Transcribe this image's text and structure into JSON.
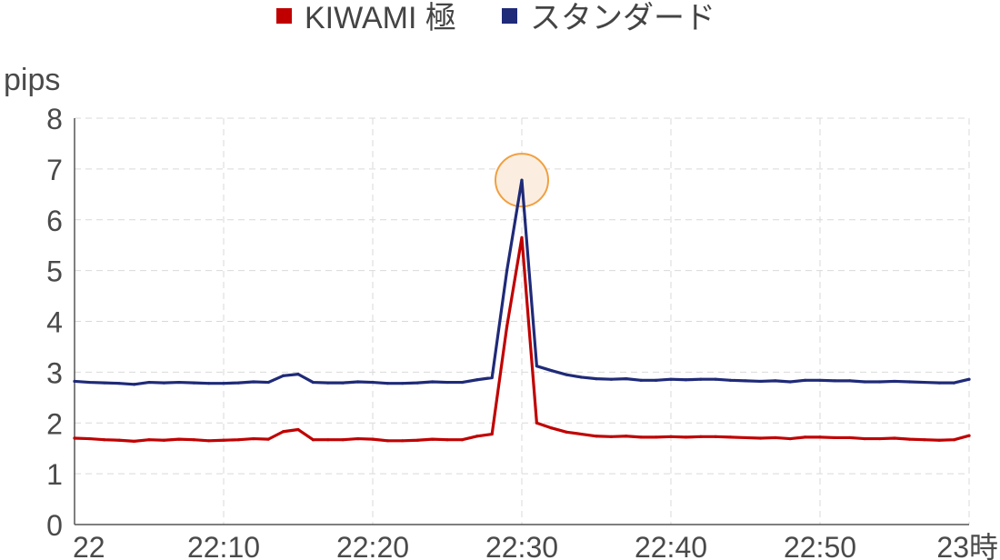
{
  "chart_data": {
    "type": "line",
    "ylabel": "pips",
    "ylim": [
      0,
      8
    ],
    "yticks": [
      "0",
      "1",
      "2",
      "3",
      "4",
      "5",
      "6",
      "7",
      "8"
    ],
    "xlim": [
      0,
      60
    ],
    "xticks": [
      {
        "value": 0,
        "label": "22"
      },
      {
        "value": 10,
        "label": "22:10"
      },
      {
        "value": 20,
        "label": "22:20"
      },
      {
        "value": 30,
        "label": "22:30"
      },
      {
        "value": 40,
        "label": "22:40"
      },
      {
        "value": 50,
        "label": "22:50"
      },
      {
        "value": 60,
        "label": "23時"
      }
    ],
    "grid": true,
    "legend_position": "top-center",
    "highlight": {
      "series": 1,
      "x": 30,
      "color": "#f0a040",
      "fill": "#fbeee0"
    },
    "series": [
      {
        "name": "KIWAMI 極",
        "color": "#c00000",
        "x": [
          0,
          1,
          2,
          3,
          4,
          5,
          6,
          7,
          8,
          9,
          10,
          11,
          12,
          13,
          14,
          15,
          16,
          17,
          18,
          19,
          20,
          21,
          22,
          23,
          24,
          25,
          26,
          27,
          28,
          29,
          30,
          31,
          32,
          33,
          34,
          35,
          36,
          37,
          38,
          39,
          40,
          41,
          42,
          43,
          44,
          45,
          46,
          47,
          48,
          49,
          50,
          51,
          52,
          53,
          54,
          55,
          56,
          57,
          58,
          59,
          60
        ],
        "values": [
          1.7,
          1.69,
          1.67,
          1.66,
          1.64,
          1.67,
          1.66,
          1.68,
          1.67,
          1.65,
          1.66,
          1.67,
          1.69,
          1.68,
          1.83,
          1.87,
          1.67,
          1.67,
          1.67,
          1.69,
          1.68,
          1.65,
          1.65,
          1.66,
          1.68,
          1.67,
          1.67,
          1.74,
          1.78,
          3.9,
          5.65,
          2.0,
          1.9,
          1.82,
          1.78,
          1.74,
          1.73,
          1.74,
          1.72,
          1.72,
          1.73,
          1.72,
          1.73,
          1.73,
          1.72,
          1.71,
          1.7,
          1.71,
          1.69,
          1.72,
          1.72,
          1.71,
          1.71,
          1.69,
          1.69,
          1.7,
          1.68,
          1.67,
          1.66,
          1.67,
          1.75
        ]
      },
      {
        "name": "スタンダード",
        "color": "#1f2a78",
        "x": [
          0,
          1,
          2,
          3,
          4,
          5,
          6,
          7,
          8,
          9,
          10,
          11,
          12,
          13,
          14,
          15,
          16,
          17,
          18,
          19,
          20,
          21,
          22,
          23,
          24,
          25,
          26,
          27,
          28,
          29,
          30,
          31,
          32,
          33,
          34,
          35,
          36,
          37,
          38,
          39,
          40,
          41,
          42,
          43,
          44,
          45,
          46,
          47,
          48,
          49,
          50,
          51,
          52,
          53,
          54,
          55,
          56,
          57,
          58,
          59,
          60
        ],
        "values": [
          2.82,
          2.8,
          2.79,
          2.78,
          2.76,
          2.8,
          2.79,
          2.8,
          2.79,
          2.78,
          2.78,
          2.79,
          2.81,
          2.8,
          2.93,
          2.96,
          2.8,
          2.79,
          2.79,
          2.81,
          2.8,
          2.78,
          2.78,
          2.79,
          2.81,
          2.8,
          2.8,
          2.85,
          2.89,
          5.0,
          6.78,
          3.12,
          3.03,
          2.95,
          2.9,
          2.87,
          2.86,
          2.87,
          2.84,
          2.84,
          2.86,
          2.85,
          2.86,
          2.86,
          2.84,
          2.83,
          2.82,
          2.83,
          2.81,
          2.84,
          2.84,
          2.83,
          2.83,
          2.81,
          2.81,
          2.82,
          2.81,
          2.8,
          2.79,
          2.79,
          2.86
        ]
      }
    ]
  }
}
